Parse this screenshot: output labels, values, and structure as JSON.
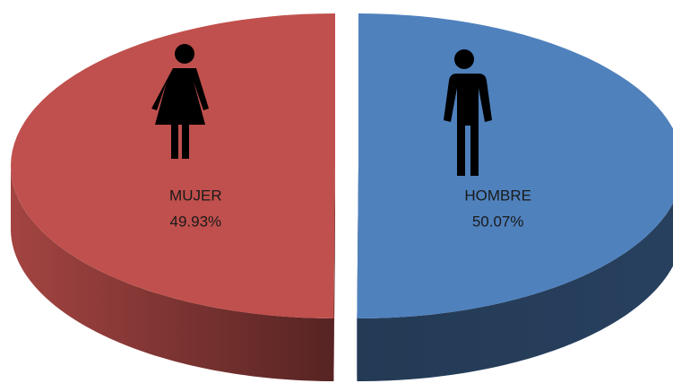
{
  "chart_data": {
    "type": "pie",
    "categories": [
      "MUJER",
      "HOMBRE"
    ],
    "values": [
      49.93,
      50.07
    ],
    "value_labels": [
      "49.93%",
      "50.07%"
    ],
    "colors": [
      "#c0504d",
      "#4f81bd"
    ]
  }
}
